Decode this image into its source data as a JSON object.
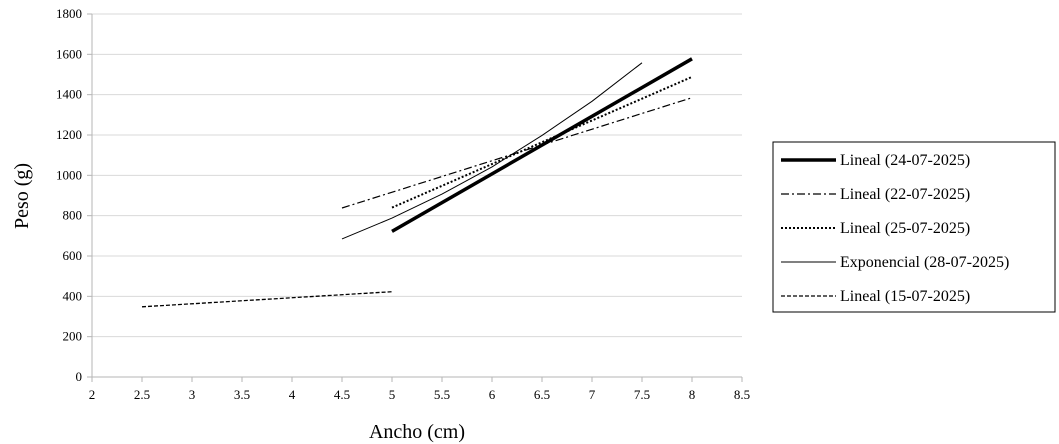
{
  "chart_data": {
    "type": "line",
    "title": "",
    "xlabel": "Ancho (cm)",
    "ylabel": "Peso (g)",
    "xlim": [
      2,
      8.5
    ],
    "ylim": [
      0,
      1800
    ],
    "x_ticks": [
      "2",
      "2.5",
      "3",
      "3.5",
      "4",
      "4.5",
      "5",
      "5.5",
      "6",
      "6.5",
      "7",
      "7.5",
      "8",
      "8.5"
    ],
    "y_ticks": [
      "0",
      "200",
      "400",
      "600",
      "800",
      "1000",
      "1200",
      "1400",
      "1600",
      "1800"
    ],
    "grid": "horizontal",
    "legend_position": "right",
    "series": [
      {
        "name": "Lineal (24-07-2025)",
        "style": "thick-solid",
        "points": [
          [
            5,
            722
          ],
          [
            8,
            1578
          ]
        ]
      },
      {
        "name": "Lineal (22-07-2025)",
        "style": "dash-dot",
        "points": [
          [
            4.5,
            838
          ],
          [
            8,
            1385
          ]
        ]
      },
      {
        "name": "Lineal (25-07-2025)",
        "style": "dotted",
        "points": [
          [
            5,
            840
          ],
          [
            8,
            1488
          ]
        ]
      },
      {
        "name": "Exponencial (28-07-2025)",
        "style": "thin-solid",
        "points": [
          [
            4.5,
            685
          ],
          [
            5,
            788
          ],
          [
            5.5,
            907
          ],
          [
            6,
            1042
          ],
          [
            6.5,
            1198
          ],
          [
            7,
            1367
          ],
          [
            7.5,
            1558
          ]
        ]
      },
      {
        "name": "Lineal (15-07-2025)",
        "style": "dashed",
        "points": [
          [
            2.5,
            348
          ],
          [
            5,
            423
          ]
        ]
      }
    ]
  }
}
